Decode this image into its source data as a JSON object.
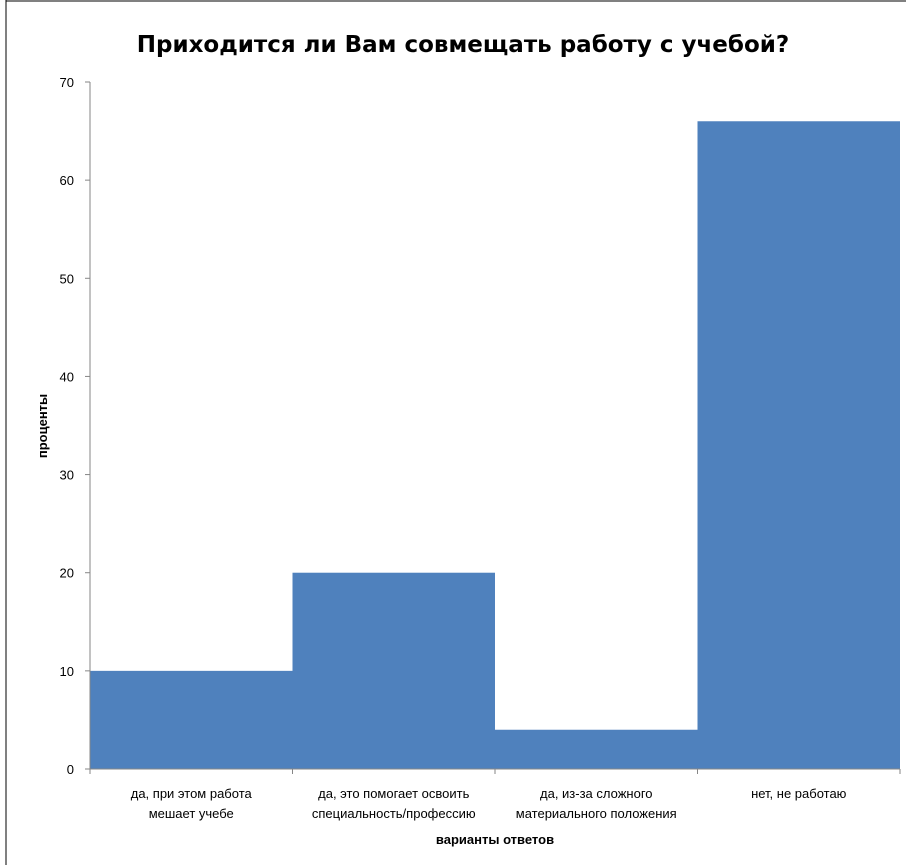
{
  "chart_data": {
    "type": "bar",
    "title": "Приходится ли Вам совмещать работу с учебой?",
    "xlabel": "варианты ответов",
    "ylabel": "проценты",
    "categories": [
      [
        "да, при этом работа",
        "мешает учебе"
      ],
      [
        "да, это помогает освоить",
        "специальность/профессию"
      ],
      [
        "да, из-за сложного",
        "материального положения"
      ],
      [
        "нет, не работаю"
      ]
    ],
    "values": [
      10,
      20,
      4,
      66
    ],
    "ylim": [
      0,
      70
    ],
    "yticks": [
      "0",
      "10",
      "20",
      "30",
      "40",
      "50",
      "60",
      "70"
    ],
    "grid": false,
    "legend": "none",
    "bar_color": "#4F81BD"
  }
}
